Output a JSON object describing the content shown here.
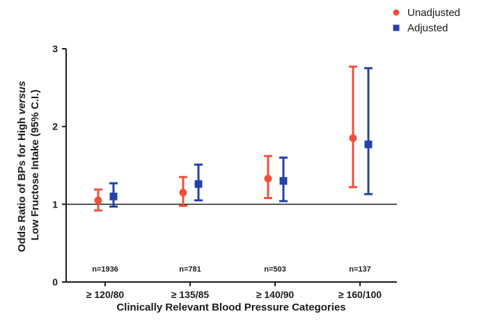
{
  "chart_data": {
    "type": "scatter",
    "xlabel": "Clinically Relevant Blood Pressure Categories",
    "ylabel_parts": [
      "Odds Ratio of BPs for High ",
      "versus",
      "Low Fructose Intake (95% C.I.)"
    ],
    "categories": [
      "≥ 120/80",
      "≥ 135/85",
      "≥ 140/90",
      "≥ 160/100"
    ],
    "sample_sizes": [
      "n=1936",
      "n=781",
      "n=503",
      "n=137"
    ],
    "ylim": [
      0,
      3
    ],
    "yticks": [
      "0",
      "1",
      "2",
      "3"
    ],
    "reference_line": 1,
    "legend_position": "top-right",
    "series": [
      {
        "name": "Unadjusted",
        "color": "#f0503a",
        "marker": "circle",
        "values": [
          1.05,
          1.15,
          1.33,
          1.85
        ],
        "lower": [
          0.92,
          0.98,
          1.08,
          1.22
        ],
        "upper": [
          1.19,
          1.35,
          1.62,
          2.77
        ]
      },
      {
        "name": "Adjusted",
        "color": "#2443a8",
        "marker": "square",
        "values": [
          1.1,
          1.26,
          1.3,
          1.77
        ],
        "lower": [
          0.97,
          1.05,
          1.04,
          1.13
        ],
        "upper": [
          1.27,
          1.51,
          1.6,
          2.75
        ]
      }
    ]
  }
}
